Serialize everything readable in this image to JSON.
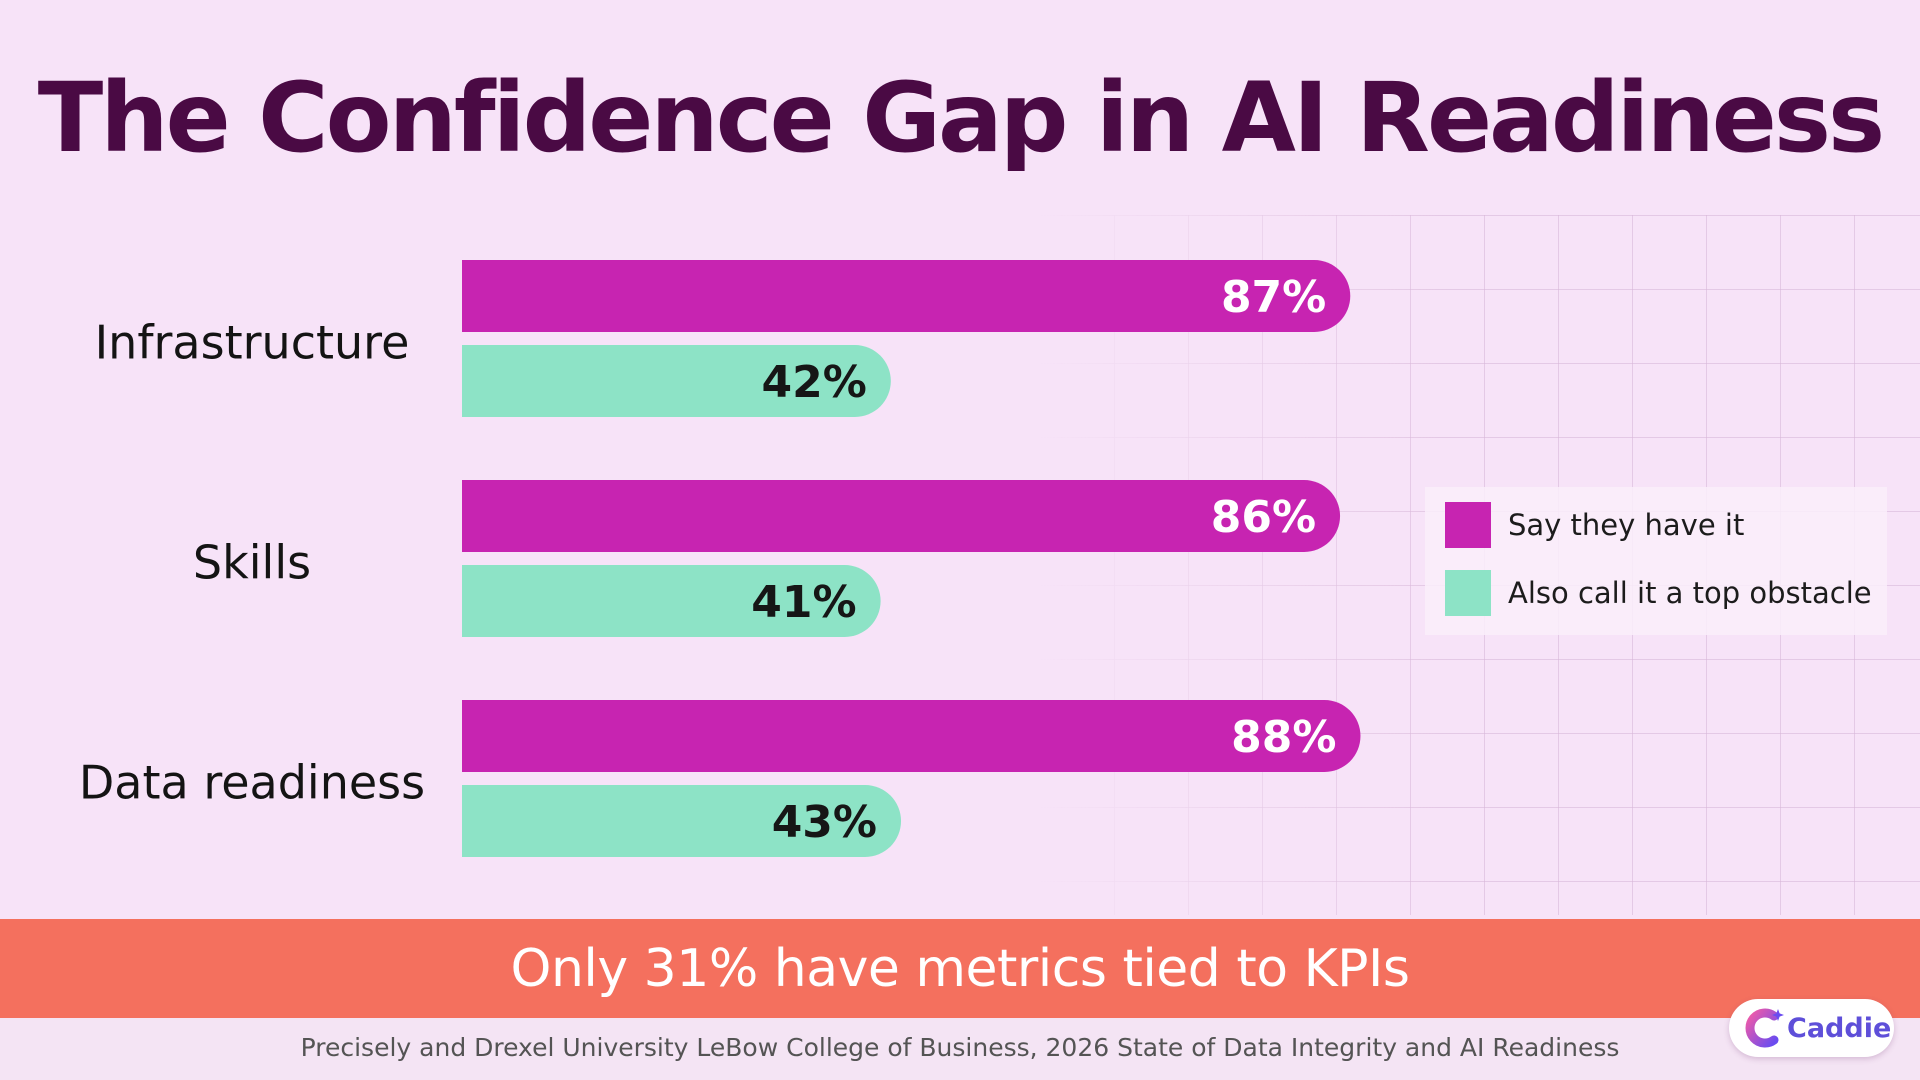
{
  "title": "The Confidence Gap in AI Readiness",
  "chart_data": {
    "type": "bar",
    "orientation": "horizontal",
    "categories": [
      "Infrastructure",
      "Skills",
      "Data readiness"
    ],
    "series": [
      {
        "name": "Say they have it",
        "values": [
          87,
          86,
          88
        ],
        "labels": [
          "87%",
          "86%",
          "88%"
        ],
        "color": "#c724b1"
      },
      {
        "name": "Also call it a top obstacle",
        "values": [
          42,
          41,
          43
        ],
        "labels": [
          "42%",
          "41%",
          "43%"
        ],
        "color": "#8de3c6"
      }
    ],
    "xlim": [
      0,
      100
    ],
    "unit": "%",
    "grid": false,
    "legend": "right"
  },
  "legend": {
    "have_it": "Say they have it",
    "obstacle": "Also call it a top obstacle"
  },
  "banner": {
    "text": "Only 31% have metrics tied to KPIs",
    "color": "#f4705e"
  },
  "source": "Precisely and Drexel University LeBow College of Business, 2026 State of Data Integrity and AI Readiness",
  "logo": {
    "text": "Caddie",
    "icon": "caddie-logo-icon"
  },
  "colors": {
    "title": "#4a0a44",
    "background": "#f7e3f8",
    "bar_primary": "#c724b1",
    "bar_secondary": "#8de3c6"
  }
}
